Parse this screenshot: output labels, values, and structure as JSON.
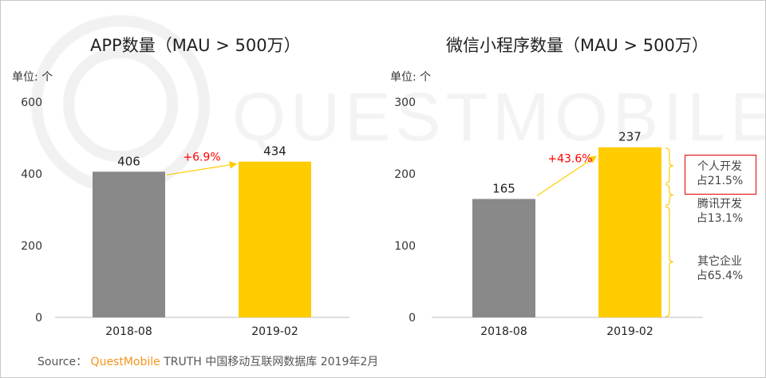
{
  "watermark": "QUESTMOBILE",
  "source": {
    "label": "Source：",
    "brand": "QuestMobile",
    "text": "TRUTH 中国移动互联网数据库 2019年2月"
  },
  "colors": {
    "bar_old": "#898989",
    "bar_new": "#ffcc00",
    "growth": "#ff0000",
    "arrow": "#ffcc00"
  },
  "chart_data": [
    {
      "type": "bar",
      "title": "APP数量（MAU > 500万）",
      "unit": "单位: 个",
      "categories": [
        "2018-08",
        "2019-02"
      ],
      "values": [
        406,
        434
      ],
      "labels": [
        "406",
        "434"
      ],
      "ylim": [
        0,
        600
      ],
      "yticks": [
        "0",
        "200",
        "400",
        "600"
      ],
      "growth": "+6.9%"
    },
    {
      "type": "bar",
      "title": "微信小程序数量（MAU > 500万）",
      "unit": "单位: 个",
      "categories": [
        "2018-08",
        "2019-02"
      ],
      "values": [
        165,
        237
      ],
      "labels": [
        "165",
        "237"
      ],
      "ylim": [
        0,
        300
      ],
      "yticks": [
        "0",
        "100",
        "200",
        "300"
      ],
      "growth": "+43.6%",
      "breakdown": [
        {
          "name": "个人开发",
          "share": "占21.5%",
          "pct": 21.5
        },
        {
          "name": "腾讯开发",
          "share": "占13.1%",
          "pct": 13.1
        },
        {
          "name": "其它企业",
          "share": "占65.4%",
          "pct": 65.4
        }
      ]
    }
  ]
}
